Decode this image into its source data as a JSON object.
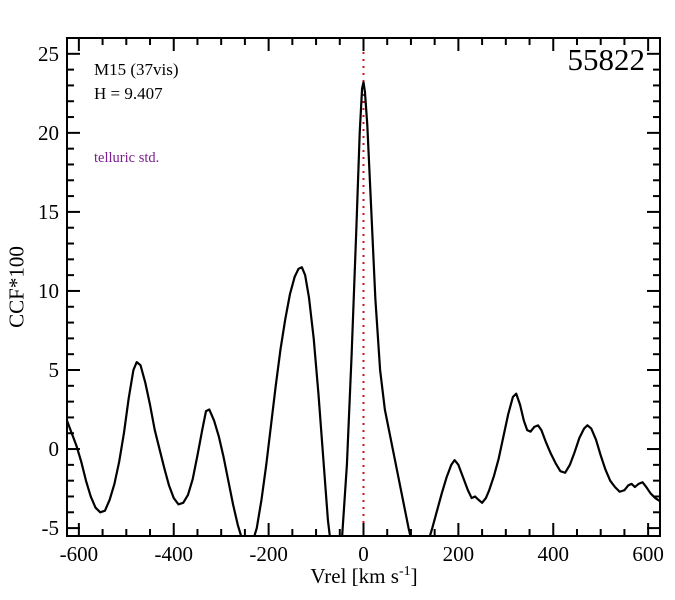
{
  "annotations": {
    "cluster": "M15 (37vis)",
    "magnitude": "H = 9.407",
    "telluric": "telluric std.",
    "star_id": "55822"
  },
  "colors": {
    "line": "#000000",
    "frame": "#000000",
    "ref_line": "#d01212",
    "telluric_text": "#7a1f8e",
    "background": "#ffffff"
  },
  "chart_data": {
    "type": "line",
    "title": "",
    "ylabel": "CCF*100",
    "xlabel_pre": "Vrel [km s",
    "xlabel_sup": "-1",
    "xlabel_post": "]",
    "xlim": [
      -625,
      625
    ],
    "ylim": [
      -5.5,
      26
    ],
    "x_ticks": [
      -600,
      -400,
      -200,
      0,
      200,
      400,
      600
    ],
    "y_ticks": [
      -5,
      0,
      5,
      10,
      15,
      20,
      25
    ],
    "x_minor_step": 50,
    "y_minor_step": 1,
    "grid": false,
    "legend": "none",
    "ref_line_x": 0,
    "series": [
      {
        "name": "ccf",
        "points": [
          [
            -625,
            1.8
          ],
          [
            -615,
            1.0
          ],
          [
            -605,
            0.2
          ],
          [
            -595,
            -0.8
          ],
          [
            -585,
            -2.0
          ],
          [
            -575,
            -3.0
          ],
          [
            -565,
            -3.7
          ],
          [
            -555,
            -4.0
          ],
          [
            -545,
            -3.9
          ],
          [
            -535,
            -3.2
          ],
          [
            -525,
            -2.2
          ],
          [
            -515,
            -0.8
          ],
          [
            -505,
            1.0
          ],
          [
            -495,
            3.2
          ],
          [
            -485,
            5.0
          ],
          [
            -478,
            5.5
          ],
          [
            -470,
            5.3
          ],
          [
            -460,
            4.2
          ],
          [
            -450,
            2.8
          ],
          [
            -440,
            1.2
          ],
          [
            -430,
            0.0
          ],
          [
            -420,
            -1.2
          ],
          [
            -410,
            -2.3
          ],
          [
            -400,
            -3.1
          ],
          [
            -390,
            -3.5
          ],
          [
            -380,
            -3.4
          ],
          [
            -370,
            -2.9
          ],
          [
            -360,
            -1.9
          ],
          [
            -350,
            -0.4
          ],
          [
            -340,
            1.2
          ],
          [
            -332,
            2.4
          ],
          [
            -325,
            2.5
          ],
          [
            -315,
            1.8
          ],
          [
            -305,
            0.8
          ],
          [
            -295,
            -0.5
          ],
          [
            -285,
            -2.0
          ],
          [
            -275,
            -3.5
          ],
          [
            -265,
            -4.8
          ],
          [
            -255,
            -5.8
          ],
          [
            -245,
            -6.3
          ],
          [
            -235,
            -6.0
          ],
          [
            -225,
            -5.0
          ],
          [
            -215,
            -3.2
          ],
          [
            -205,
            -1.0
          ],
          [
            -195,
            1.5
          ],
          [
            -185,
            4.0
          ],
          [
            -175,
            6.3
          ],
          [
            -165,
            8.2
          ],
          [
            -155,
            9.8
          ],
          [
            -145,
            10.9
          ],
          [
            -137,
            11.4
          ],
          [
            -130,
            11.5
          ],
          [
            -123,
            11.0
          ],
          [
            -115,
            9.6
          ],
          [
            -105,
            7.0
          ],
          [
            -95,
            3.5
          ],
          [
            -85,
            -0.5
          ],
          [
            -75,
            -4.5
          ],
          [
            -65,
            -7.0
          ],
          [
            -55,
            -7.5
          ],
          [
            -45,
            -5.5
          ],
          [
            -35,
            -1.0
          ],
          [
            -25,
            6.0
          ],
          [
            -15,
            14.0
          ],
          [
            -8,
            20.0
          ],
          [
            -3,
            22.8
          ],
          [
            0,
            23.2
          ],
          [
            3,
            22.6
          ],
          [
            8,
            20.5
          ],
          [
            15,
            16.0
          ],
          [
            25,
            9.5
          ],
          [
            35,
            5.0
          ],
          [
            45,
            2.5
          ],
          [
            55,
            1.0
          ],
          [
            65,
            -0.5
          ],
          [
            75,
            -2.0
          ],
          [
            85,
            -3.5
          ],
          [
            95,
            -5.0
          ],
          [
            105,
            -6.3
          ],
          [
            115,
            -7.0
          ],
          [
            125,
            -6.8
          ],
          [
            135,
            -6.0
          ],
          [
            145,
            -5.0
          ],
          [
            155,
            -3.9
          ],
          [
            165,
            -2.8
          ],
          [
            175,
            -1.8
          ],
          [
            185,
            -1.0
          ],
          [
            192,
            -0.7
          ],
          [
            200,
            -1.0
          ],
          [
            210,
            -1.8
          ],
          [
            220,
            -2.6
          ],
          [
            228,
            -3.1
          ],
          [
            235,
            -3.0
          ],
          [
            242,
            -3.2
          ],
          [
            250,
            -3.4
          ],
          [
            258,
            -3.1
          ],
          [
            265,
            -2.6
          ],
          [
            275,
            -1.7
          ],
          [
            285,
            -0.6
          ],
          [
            295,
            0.8
          ],
          [
            305,
            2.2
          ],
          [
            315,
            3.3
          ],
          [
            322,
            3.5
          ],
          [
            330,
            2.8
          ],
          [
            338,
            1.8
          ],
          [
            345,
            1.2
          ],
          [
            352,
            1.1
          ],
          [
            360,
            1.4
          ],
          [
            368,
            1.5
          ],
          [
            375,
            1.2
          ],
          [
            385,
            0.4
          ],
          [
            395,
            -0.3
          ],
          [
            405,
            -0.9
          ],
          [
            415,
            -1.4
          ],
          [
            425,
            -1.5
          ],
          [
            435,
            -1.0
          ],
          [
            445,
            -0.2
          ],
          [
            455,
            0.7
          ],
          [
            465,
            1.3
          ],
          [
            472,
            1.5
          ],
          [
            480,
            1.3
          ],
          [
            490,
            0.6
          ],
          [
            500,
            -0.4
          ],
          [
            510,
            -1.3
          ],
          [
            520,
            -2.0
          ],
          [
            530,
            -2.4
          ],
          [
            540,
            -2.7
          ],
          [
            550,
            -2.6
          ],
          [
            558,
            -2.3
          ],
          [
            565,
            -2.2
          ],
          [
            572,
            -2.4
          ],
          [
            580,
            -2.2
          ],
          [
            588,
            -2.1
          ],
          [
            596,
            -2.4
          ],
          [
            605,
            -2.8
          ],
          [
            615,
            -3.1
          ],
          [
            625,
            -3.3
          ]
        ]
      }
    ]
  }
}
